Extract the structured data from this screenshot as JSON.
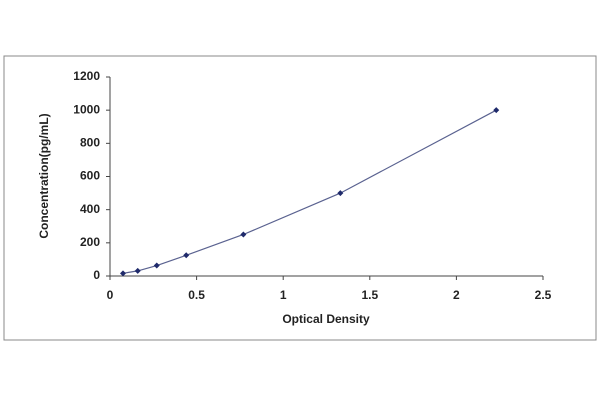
{
  "chart_data": {
    "type": "line",
    "x_label": "Optical Density",
    "y_label": "Concentration(pg/mL)",
    "x": [
      0.075,
      0.16,
      0.27,
      0.44,
      0.77,
      1.33,
      2.23
    ],
    "values": [
      16,
      31,
      63,
      125,
      250,
      500,
      1000
    ],
    "color": "#5a6290",
    "marker_color": "#1f2a6b",
    "xlim": [
      0,
      2.5
    ],
    "xticks": [
      0,
      0.5,
      1,
      1.5,
      2,
      2.5
    ],
    "ylim": [
      0,
      1200
    ],
    "yticks": [
      0,
      200,
      400,
      600,
      800,
      1000,
      1200
    ],
    "grid": false
  }
}
